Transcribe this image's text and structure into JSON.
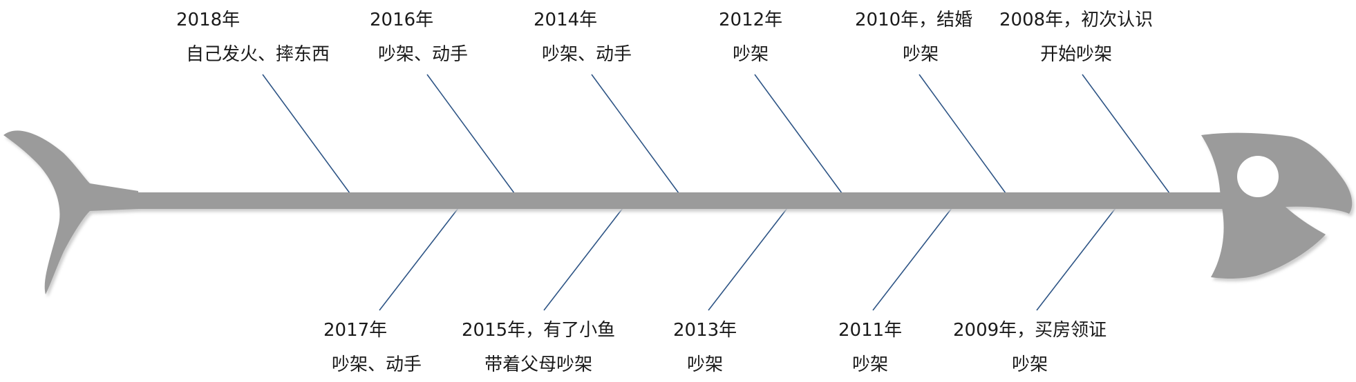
{
  "diagram": {
    "type": "fishbone-timeline",
    "colors": {
      "fish_body": "#9b9b9b",
      "rib_line": "#2d5485",
      "eye": "#ffffff",
      "text": "#1a1a1a"
    },
    "top_events": [
      {
        "year": "2018年",
        "text": "自己发火、摔东西"
      },
      {
        "year": "2016年",
        "text": "吵架、动手"
      },
      {
        "year": "2014年",
        "text": "吵架、动手"
      },
      {
        "year": "2012年",
        "text": "吵架"
      },
      {
        "year": "2010年，结婚",
        "text": "吵架"
      },
      {
        "year": "2008年，初次认识",
        "text": "开始吵架"
      }
    ],
    "bottom_events": [
      {
        "year": "2017年",
        "text": "吵架、动手"
      },
      {
        "year": "2015年，有了小鱼",
        "text": "带着父母吵架"
      },
      {
        "year": "2013年",
        "text": "吵架"
      },
      {
        "year": "2011年",
        "text": "吵架"
      },
      {
        "year": "2009年，买房领证",
        "text": "吵架"
      }
    ]
  }
}
